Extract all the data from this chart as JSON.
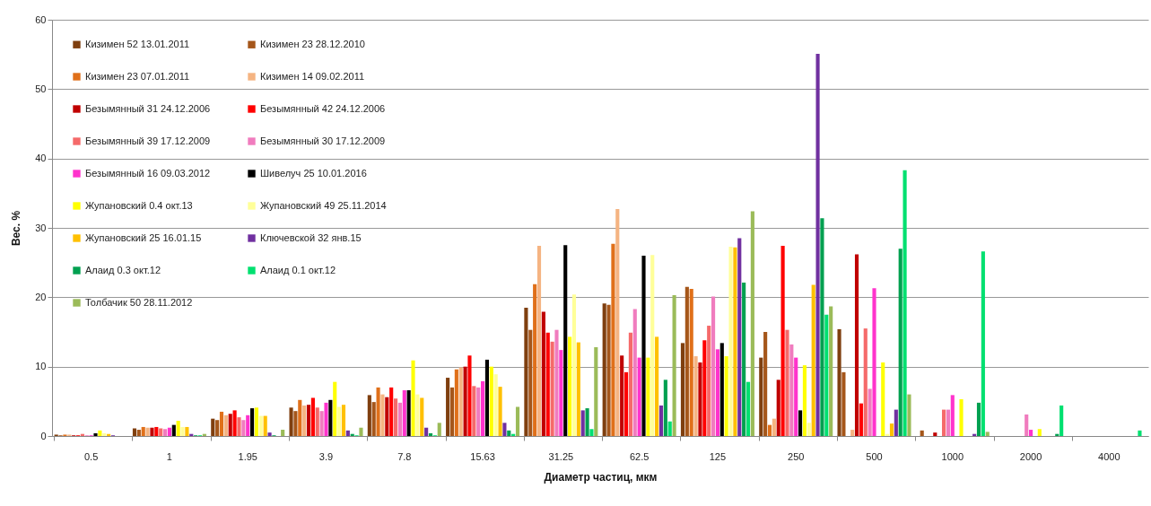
{
  "chart_data": {
    "type": "bar",
    "xlabel": "Диаметр частиц, мкм",
    "ylabel": "Вес. %",
    "categories": [
      "0.5",
      "1",
      "1.95",
      "3.9",
      "7.8",
      "15.63",
      "31.25",
      "62.5",
      "125",
      "250",
      "500",
      "1000",
      "2000",
      "4000"
    ],
    "ylim": [
      0,
      60
    ],
    "yticks": [
      0,
      10,
      20,
      30,
      40,
      50,
      60
    ],
    "grid": "y",
    "legend": "top left",
    "series": [
      {
        "name": "Кизимен 52 13.01.2011",
        "color": "#7f3f0f",
        "values": [
          0.2,
          1.1,
          2.5,
          4.1,
          5.9,
          8.4,
          18.5,
          19.1,
          13.4,
          11.3,
          15.4,
          0,
          0,
          0
        ]
      },
      {
        "name": "Кизимен 23 28.12.2010",
        "color": "#a5561a",
        "values": [
          0.1,
          0.9,
          2.3,
          3.6,
          4.9,
          7.0,
          15.3,
          18.9,
          21.5,
          15.0,
          9.2,
          0.8,
          0,
          0
        ]
      },
      {
        "name": "Кизимен 23 07.01.2011",
        "color": "#e0701a",
        "values": [
          0.2,
          1.3,
          3.5,
          5.2,
          7.0,
          9.6,
          21.9,
          27.7,
          21.2,
          1.6,
          0,
          0,
          0,
          0
        ]
      },
      {
        "name": "Кизимен 14 09.02.2011",
        "color": "#f5b482",
        "values": [
          0.2,
          1.2,
          3.0,
          4.4,
          6.0,
          9.9,
          27.4,
          32.7,
          11.5,
          2.5,
          0.9,
          0,
          0,
          0
        ]
      },
      {
        "name": "Безымянный 31 24.12.2006",
        "color": "#c00000",
        "values": [
          0.1,
          1.2,
          3.2,
          4.5,
          5.6,
          10.0,
          17.9,
          11.6,
          10.6,
          8.1,
          26.2,
          0.5,
          0,
          0
        ]
      },
      {
        "name": "Безымянный 42 24.12.2006",
        "color": "#ff0000",
        "values": [
          0.1,
          1.3,
          3.7,
          5.5,
          7.0,
          11.6,
          14.9,
          9.2,
          13.8,
          27.4,
          4.7,
          0,
          0,
          0
        ]
      },
      {
        "name": "Безымянный 39 17.12.2009",
        "color": "#f56a6a",
        "values": [
          0.3,
          1.1,
          2.7,
          4.1,
          5.4,
          7.2,
          13.6,
          14.9,
          15.9,
          15.3,
          15.5,
          3.8,
          0,
          0
        ]
      },
      {
        "name": "Безымянный 30 17.12.2009",
        "color": "#f07cbe",
        "values": [
          0.1,
          1.0,
          2.3,
          3.6,
          4.8,
          7.0,
          15.3,
          18.3,
          20.1,
          13.2,
          6.8,
          3.8,
          3.1,
          0
        ]
      },
      {
        "name": "Безымянный 16 09.03.2012",
        "color": "#ff33cc",
        "values": [
          0.1,
          1.2,
          3.0,
          4.8,
          6.6,
          7.9,
          12.4,
          11.3,
          12.5,
          11.3,
          21.3,
          5.9,
          0.9,
          0
        ]
      },
      {
        "name": "Шивелуч 25 10.01.2016",
        "color": "#000000",
        "values": [
          0.4,
          1.6,
          4.0,
          5.2,
          6.6,
          11.0,
          27.5,
          26.0,
          13.4,
          3.7,
          0,
          0,
          0,
          0
        ]
      },
      {
        "name": "Жупановский 0.4 окт.13",
        "color": "#ffff00",
        "values": [
          0.8,
          2.2,
          4.1,
          7.8,
          10.9,
          10.0,
          14.3,
          11.3,
          11.5,
          10.2,
          10.6,
          5.3,
          1.0,
          0
        ]
      },
      {
        "name": "Жупановский 49 25.11.2014",
        "color": "#ffff99",
        "values": [
          0.4,
          1.3,
          2.9,
          4.2,
          6.0,
          8.9,
          20.4,
          26.1,
          27.3,
          1.9,
          0.3,
          0,
          0,
          0
        ]
      },
      {
        "name": "Жупановский 25  16.01.15",
        "color": "#ffc000",
        "values": [
          0.3,
          1.3,
          2.9,
          4.5,
          5.5,
          7.1,
          13.5,
          14.3,
          27.2,
          21.8,
          1.8,
          0,
          0,
          0
        ]
      },
      {
        "name": "Ключевской 32 янв.15",
        "color": "#7030a0",
        "values": [
          0.1,
          0.3,
          0.5,
          0.8,
          1.2,
          1.9,
          3.7,
          4.4,
          28.5,
          55.1,
          3.8,
          0.3,
          0,
          0
        ]
      },
      {
        "name": "Алаид 0.3 окт.12",
        "color": "#00a050",
        "values": [
          0,
          0.1,
          0.1,
          0.3,
          0.4,
          0.8,
          4.0,
          8.1,
          22.1,
          31.4,
          27.0,
          4.8,
          0.3,
          0
        ]
      },
      {
        "name": "Алаид 0.1 окт.12",
        "color": "#00e070",
        "values": [
          0,
          0.1,
          0,
          0.1,
          0.1,
          0.3,
          1.0,
          2.1,
          7.8,
          17.5,
          38.3,
          26.6,
          4.4,
          0.8
        ]
      },
      {
        "name": "Толбачик 50 28.11.2012",
        "color": "#9bbb59",
        "values": [
          null,
          0.3,
          0.9,
          1.2,
          1.9,
          4.2,
          12.8,
          20.3,
          32.4,
          18.7,
          6.0,
          0.6,
          0,
          0
        ]
      }
    ]
  }
}
